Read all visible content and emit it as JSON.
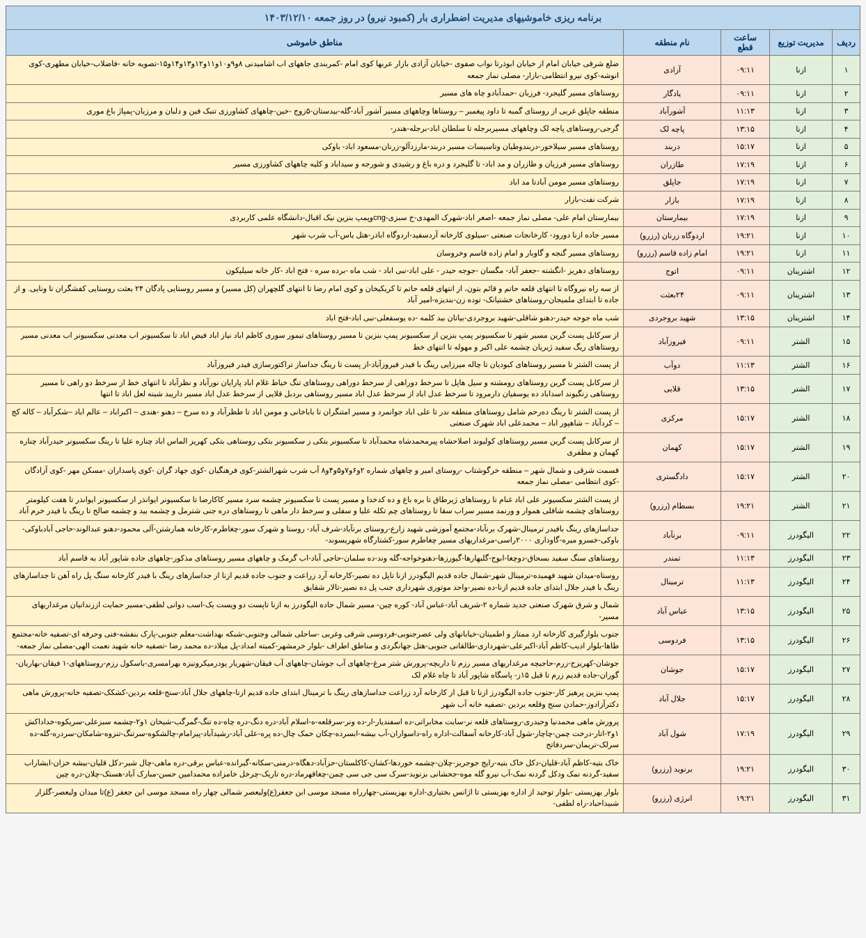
{
  "title": "برنامه ریزی خاموشیهای مدیریت اضطراری بار (کمبود نیرو) در روز جمعه ۱۴۰۳/۱۲/۱۰",
  "headers": {
    "idx": "ردیف",
    "dist": "مدیریت توزیع",
    "time": "ساعت قطع",
    "zone": "نام منطقه",
    "areas": "مناطق خاموشی"
  },
  "rows": [
    {
      "idx": "۱",
      "dist": "ازنا",
      "time": "۰۹:۱۱",
      "zone": "آزادی",
      "areas": "ضلع شرقی خیابان امام از خیابان ابوذرتا نواب صفوی -خیابان آزادی بازار عربها کوی امام -کمربندی جاههای اب اشامیدنی ۸و۹و۱۰و۱۱و۱۲و۱۳و۱۴و۱۵-تصویه خانه -فاضلاب-خیابان مطهری-کوی انوشه-کوی نیرو انتظامی-بازار- مصلی نماز جمعه"
    },
    {
      "idx": "۲",
      "dist": "ازنا",
      "time": "۰۹:۱۱",
      "zone": "یادگار",
      "areas": "روستاهای مسیر گلیجرد- فرزیان -حمدآبادو چاه های مسیر"
    },
    {
      "idx": "۳",
      "dist": "ازنا",
      "time": "۱۱:۱۳",
      "zone": "آشورآباد",
      "areas": "منطقه جاپلق غربی از روستای گمبه تا داود پیغمبر – روستاها وچاههای مسیر آشور آباد-گله-بیدستان-۵زوج -خین-چاههای کشاورزی تنبک فین و دلبان و مرزبان-پمپاژ باغ موری"
    },
    {
      "idx": "۴",
      "dist": "ازنا",
      "time": "۱۳:۱۵",
      "zone": "پاچه لک",
      "areas": "گرجی-روستاهای پاچه لک وچاههای مسیربرجله تا سلطان اباد-برجله-هندر-"
    },
    {
      "idx": "۵",
      "dist": "ازنا",
      "time": "۱۵:۱۷",
      "zone": "دربند",
      "areas": "روستاهای مسیر سیلاخور-دربندوطیان وتاسیسات مسیر دربند-مارزدآلو-زرنان-مسعود اباد- باوکی"
    },
    {
      "idx": "۶",
      "dist": "ازنا",
      "time": "۱۷:۱۹",
      "zone": "طازران",
      "areas": "روستاهای مسیر فرزیان و طازران و مد اباد- تا گلیجرد و دره باغ و رشیدی و شورجه و سیداباد و کلیه چاههای کشاورزی مسیر"
    },
    {
      "idx": "۷",
      "dist": "ازنا",
      "time": "۱۷:۱۹",
      "zone": "جاپلق",
      "areas": "روستاهای مسیر مومن آبادتا مد اباد"
    },
    {
      "idx": "۸",
      "dist": "ازنا",
      "time": "۱۷:۱۹",
      "zone": "بازار",
      "areas": "شرکت نفت-بازار"
    },
    {
      "idx": "۹",
      "dist": "ازنا",
      "time": "۱۷:۱۹",
      "zone": "بیمارستان",
      "areas": "بیمارستان امام علی- مصلی نماز جمعه -اصغر اباد-شهرک المهدی-خ سبزی-cngوپمپ بنزین نیک اقبال-دانشگاه علمی کاربردی"
    },
    {
      "idx": "۱۰",
      "dist": "ازنا",
      "time": "۱۹:۲۱",
      "zone": "اردوگاه زرنان (رزرو)",
      "areas": "مسیر جاده ازنا دورود- کارخانجات صنعتی -سیلوی کارخانه آردسفید-اردوگاه اباذر-هتل یاس-آب شرب شهر"
    },
    {
      "idx": "۱۱",
      "dist": "ازنا",
      "time": "۱۹:۲۱",
      "zone": "امام زاده قاسم (رزرو)",
      "areas": "روستاهای مسیر گنجه و گاوبار و امام زاده قاسم وخروسان"
    },
    {
      "idx": "۱۲",
      "dist": "اشترینان",
      "time": "۰۹:۱۱",
      "zone": "اتوج",
      "areas": "روستاهای دهریز -انگشته -جعفر آباد- مگسان -جوجه حیدر - علی اباد-نبی اباد - شب ماه -برده سره - فتح اباد -کار خانه سیلیکون"
    },
    {
      "idx": "۱۳",
      "dist": "اشترینان",
      "time": "۰۹:۱۱",
      "zone": "۲۴بعثت",
      "areas": "از سه راه نیروگاه تا انتهای قلعه حاتم و قائم بتون، از انتهای قلعه حاتم تا کریکیخان و کوی امام رضا تا انتهای گلچهران (کل مسیر) و مسیر روستایی پادگان ۲۴ بعثت روستایی کفشگران تا ونایی. و از جاده تا ابتدای ملمیجان-روستاهای خشتیانک- توده زن-بندیزه-امیر آباد"
    },
    {
      "idx": "۱۴",
      "dist": "اشترینان",
      "time": "۱۳:۱۵",
      "zone": "شهید بروجردی",
      "areas": "شب ماه جوجه حیدر-دهنو شاقلی-شهید بروجردی-بیاتان بید کلمه -ده یوسفعلی-نبی اباد-فتح اباد"
    },
    {
      "idx": "۱۵",
      "dist": "الشتر",
      "time": "۰۹:۱۱",
      "zone": "فیروزآباد",
      "areas": "از سرکابل پست گرین مسیر شهر تا سکسیونر پمپ بنزین از سکسیونر پمپ بنزین تا مسیر روستاهای تیمور سوری کاظم اباد نیاز اباد فیض اباد تا سکسیونر اب معدنی سکسیونر اب معدنی مسیر روستاهای ریگ سفید ژیریان چشمه علی اکبر و مهوله تا انتهای خط"
    },
    {
      "idx": "۱۶",
      "dist": "الشتر",
      "time": "۱۱:۱۳",
      "zone": "دوآب",
      "areas": "از پست الشتر تا مسیر روستاهای کبودیان تا چاله میرزایی رینگ با فیدر فیروزآباد-از پست تا رینگ جداساز تراکتورسازی فیدر فیروزآباد"
    },
    {
      "idx": "۱۷",
      "dist": "الشتر",
      "time": "۱۳:۱۵",
      "zone": "قلایی",
      "areas": "از سرکابل پست گرین روستاهای رومشته و سیل هاپل تا سرخط دوراهی از سرخط دوراهی روستاهای تنگ خیاط غلام اباد پارایان نورآباد و نظرآباد تا انتهای خط از سرخط دو راهی تا مسیر روستاهی زنگیوند اسداباد ده یوسفیان دارمرود تا سرخط عدل اباد از سرخط عدل اباد مسیر روستاهی بردبل قلایی از سرخط عدل اباد مسیر داریبد شینه لعل اباد تا انتها"
    },
    {
      "idx": "۱۸",
      "dist": "الشتر",
      "time": "۱۵:۱۷",
      "zone": "مرکزی",
      "areas": "از پست الشتر تا رینگ ده‌رحم شامل روستاهای منطقه ندر تا علی اباد جوانمرد و مسیر امتنگران تا باباخانی و مومن اباد تا طظرآباد و ده سرخ – دهنو -هندی – اکبراباد – عالم اباد –شکرآباد – کاله کج – کردآباد – شاهپور اباد – محمدعلی اباد شهرک صنعتی"
    },
    {
      "idx": "۱۹",
      "dist": "الشتر",
      "time": "۱۵:۱۷",
      "zone": "کهمان",
      "areas": "از سرکابل پست گرین مسیر روستاهای کولیوند اصلاحشاه پیرمحمدشاه محمدآباد تا سکسیونر بتکی ز سکسیونر بتکی روستاهی بتکی کهریز الماس اباد چناره علیا تا رینگ سکسیونر حیدرآباد چناره کهمان و مظفری"
    },
    {
      "idx": "۲۰",
      "dist": "الشتر",
      "time": "۱۵:۱۷",
      "zone": "دادگستری",
      "areas": "قسمت شرقی و شمال شهر – منطقه خرگوشتاب -روستای امیر و چاههای شماره ۲و۶و۷و۵و۴و۸ آب شرب شهرالشتر-کوی فرهنگیان -کوی جهاد گران -کوی پاسداران -مسکن مهر -کوی آزادگان -کوی انتظامی -مصلی نماز جمعه"
    },
    {
      "idx": "۲۱",
      "dist": "الشتر",
      "time": "۱۹:۲۱",
      "zone": "بسطام (رزرو)",
      "areas": "از پست الشتر سکسیونر علی اباد غنام تا روستاهای ژیرطاق تا بره باغ و ده کدخدا و مسیر پست تا سکسیونر چشمه سرد مسیر کاکارضا تا سکسیونر ایوانذر از سکسیونر ایوانذر تا هفت کیلومتر روستاهای چشمه شاقلی هموار و ورنمد مسیر سراب سقا تا روستاهای چم تکله علیا و سفلی و سرخط دار ماهی تا روستاهای دره جنی شترمل و چشمه بید و چشمه صالح تا رینگ با فیدر خرم آباد"
    },
    {
      "idx": "۲۲",
      "dist": "الیگودرز",
      "time": "۰۹:۱۱",
      "zone": "برنآباد",
      "areas": "جداسازهای رینگ بافیدر ترمینال-شهرک برنآباد-مجتمع آموزشی شهید زارع-روستای برنآباد-شرف آباد- روستا و شهرک سور-چغاطرم-کارخانه همارشتن-آلی محمود-دهنو عبدالوند-حاجی آبادباوکی-باوکی-خسرو میره-گاوداری ۲۰۰۰راسی-مرغداریهای مسیر چغاطرم سور-کشتارگاه شهریسوند-"
    },
    {
      "idx": "۲۳",
      "dist": "الیگودرز",
      "time": "۱۱:۱۳",
      "zone": "تمندر",
      "areas": "روستاهای سنگ سفید بسحاق-دوچغا-ابوج-گلبهارها-گیورزها-دهنوخواجه-گله وند-ده سلمان-حاجی آباد-اب گرمک و چاههای مسیر روستاهای مذکور-چاههای جاده شاپور آباد به قاسم آباد"
    },
    {
      "idx": "۲۴",
      "dist": "الیگودرز",
      "time": "۱۱:۱۳",
      "zone": "ترمینال",
      "areas": "روستاه-میدان شهید فهمیده-ترمینال شهر-شمال جاده قدیم الیگودرز ازنا تاپل ده نصیر-کارخانه آرد زراعت و جنوب جاده قدیم ازنا از جداسازهای رینگ با فیدر کارخانه سنگ پل راه آهن تا جداسازهای رینگ با فیدر جلال ابتدای جاده قدیم ازنا-ده نصیر-واحد موتوری شهرداری جنب پل ده نصیر-تالار شقایق"
    },
    {
      "idx": "۲۵",
      "dist": "الیگودرز",
      "time": "۱۳:۱۵",
      "zone": "عباس آباد",
      "areas": "شمال و شرق شهرک صنعتی جدید شماره ۲-شریف آباد-عباس آباد- کوره چین- مسیر شمال جاده الیگودرز به ازنا تاپست دو ویست یک-اسب دوانی لطفی-مسیر حمایت اززندانیان مرغداریهای مسیر-"
    },
    {
      "idx": "۲۶",
      "dist": "الیگودرز",
      "time": "۱۳:۱۵",
      "zone": "فردوسی",
      "areas": "جنوب بلوارگیری کارخانه ارد ممتاز و اطمینان-خیابانهای ولی عصرجنوبی-فردوسی شرقی وغربی -ساحلی شمالی وجنوبی-شبکه بهداشت-معلم جنوبی-پارک بنفشه-فنی وحرفه ای-تصفیه خانه-مجتمع طاها-بلوار ادیب-کاظم آباد-اکبرعلی-شهرداری-طالقانی جنوبی-هتل جهانگردی و مناطق اطراف -بلوار خرمشهر-کمیته امداد-پل میلاد-ده محمد رضا -تصفیه خانه شهید نعمت الهی-مصلی نماز جمعه-"
    },
    {
      "idx": "۲۷",
      "dist": "الیگودرز",
      "time": "۱۵:۱۷",
      "zone": "جوشان",
      "areas": "جوشان-کهریزج-زرم-حاجیچه مرغداریهای مسیر رزم تا داریچه-پرورش شتر مرغ-چاههای آب جوشان-چاههای آب فیقان-شهریار پودرمیکرونیزه بهرامسری-باسکول رزم-روستاههای-۱ فیقان-بهاریان-گوران-جاده قدیم زرم تا قبل ۱۵ز- پاسگاه شاپور آباد تا چاه غلام لک"
    },
    {
      "idx": "۲۸",
      "dist": "الیگودرز",
      "time": "۱۵:۱۷",
      "zone": "جلال آباد",
      "areas": "پمپ بنزین پرهیز کار-جنوب جاده الیگودرز ازنا تا قبل از کارخانه آرد زراعت جداسازهای رینگ با ترمینال ابتدای جاده قدیم ازنا-چاههای جلال آباد-سنج-قلعه بردین-کشکک-تصفیه خانه-پرورش ماهی دکترآزادوز-حمادن سنج وقلعه بردین -تصفیه خانه آب شهر"
    },
    {
      "idx": "۲۹",
      "dist": "الیگودرز",
      "time": "۱۷:۱۹",
      "zone": "شول آباد",
      "areas": "پرورش ماهی محمدنیا وحیدری-روستاهای قلعه نر-سایت مخابراتی-ده اسفندیار-ار-ده ونر-سرقلعه-ه-اسلام آباد-دره دنگ-دره چاه-ده تنگ-گمرگب-شیخان ۱و۲-چشمه سبزعلی-سریکوه-خداداکش ۱و۲-اتار-درخت چمن-چاچار-شول آباد-کارخانه آسفالت-اداره راه-داسواران-آب بیشه-ابسرده-چکان خمک چال-ده پره-علی آباد-رشیدآباد-پیرامام-چالشکوه-سرتنگ-تنزوه-شامکان-سردره-گله-ده سرلک-تریمان-سردفاتح"
    },
    {
      "idx": "۳۰",
      "dist": "الیگودرز",
      "time": "۱۹:۲۱",
      "zone": "برنوید (رزرو)",
      "areas": "خاک بتیه-کاظم آباد-قلیان-دکل خاک بتیه-رایج جوجریز-چلان-چشمه خوردها-کشان-کاکلستان-حزآباد-دهگاه-درمنی-سکانه-گیرانده-عباس برقی-دره ماهی-چال شیر-دکل قلیان-بیشه خزان-ابشاراب سفید-گردنه نمک ودکل گردنه نمک-آب نیرو گله موه-جحشانی بزنوید-سرک سی جی سی چمن-چغاقهرماد-دره تاریک-چرخل خامزاده محمدامین حسن-مبارک آباد-هستک-چلان-دره چین"
    },
    {
      "idx": "۳۱",
      "dist": "الیگودرز",
      "time": "۱۹:۲۱",
      "zone": "انرژی (رزرو)",
      "areas": "بلوار بهزیستی -بلوار توحید از اداره بهزیستی تا اژانس بختیاری-اداره بهزیستی-چهارراه مسجد موسی ابن جعفر(ع)ولیعصر شمالی چهار راه مسجد موسی ابن جعفر (ع)تا میدان ولیعصر-گلزار شبیداحباد-راه لطفی-"
    }
  ],
  "colors": {
    "header_bg": "#bdd7ee",
    "idx_bg": "#e2efda",
    "time_bg": "#fce4d6",
    "areas_bg": "#fff2cc",
    "border": "#7a7a7a"
  }
}
